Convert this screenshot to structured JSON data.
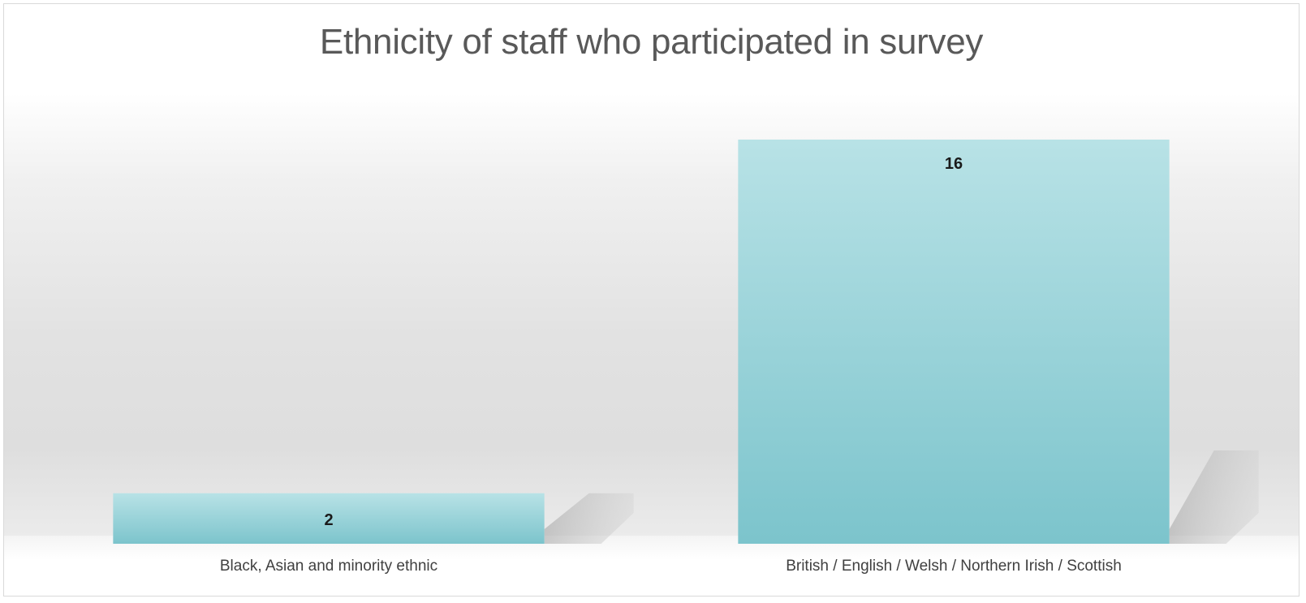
{
  "chart_data": {
    "type": "bar",
    "title": "Ethnicity of staff who participated in survey",
    "categories": [
      "Black, Asian and minority ethnic",
      "British / English / Welsh / Northern Irish / Scottish"
    ],
    "values": [
      2,
      16
    ],
    "ylim": [
      0,
      18
    ],
    "grid": false,
    "legend": "none",
    "colors": {
      "bar_top": "#b8e2e6",
      "bar_bottom": "#7cc4cc",
      "title": "#595959",
      "tick_label": "#404040",
      "data_label": "#1a1a1a"
    }
  }
}
